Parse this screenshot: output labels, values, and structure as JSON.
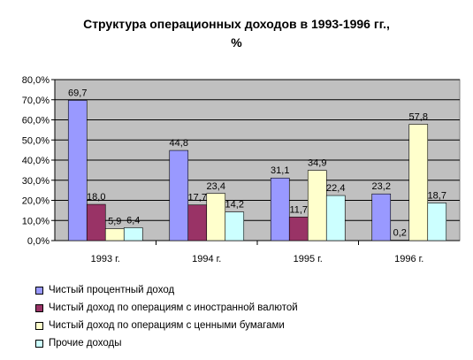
{
  "chart_data": {
    "type": "bar",
    "title_line1": "Структура операционных доходов в 1993-1996 гг.,",
    "title_line2": "%",
    "categories": [
      "1993 г.",
      "1994 г.",
      "1995 г.",
      "1996 г."
    ],
    "series": [
      {
        "name": "Чистый процентный доход",
        "color": "#9999FF",
        "values": [
          69.7,
          44.8,
          31.1,
          23.2
        ],
        "labels": [
          "69,7",
          "44,8",
          "31,1",
          "23,2"
        ]
      },
      {
        "name": "Чистый доход по операциям с иностранной валютой",
        "color": "#993366",
        "values": [
          18.0,
          17.7,
          11.7,
          0.2
        ],
        "labels": [
          "18,0",
          "17,7",
          "11,7",
          "0,2"
        ]
      },
      {
        "name": "Чистый доход по операциям с ценными бумагами",
        "color": "#FFFFCC",
        "values": [
          5.9,
          23.4,
          34.9,
          57.8
        ],
        "labels": [
          "5,9",
          "23,4",
          "34,9",
          "57,8"
        ]
      },
      {
        "name": "Прочие доходы",
        "color": "#CCFFFF",
        "values": [
          6.4,
          14.2,
          22.4,
          18.7
        ],
        "labels": [
          "6,4",
          "14,2",
          "22,4",
          "18,7"
        ]
      }
    ],
    "ylim": [
      0,
      80
    ],
    "yticks": [
      "0,0%",
      "10,0%",
      "20,0%",
      "30,0%",
      "40,0%",
      "50,0%",
      "60,0%",
      "70,0%",
      "80,0%"
    ],
    "grid": true,
    "plot_background": "#C0C0C0",
    "legend_position": "bottom"
  }
}
